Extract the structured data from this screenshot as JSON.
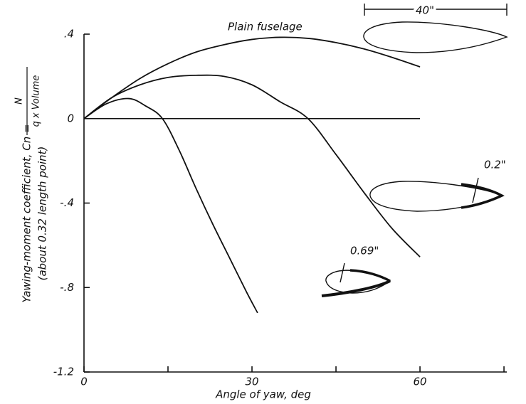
{
  "chart_data": {
    "type": "line",
    "xlabel": "Angle of yaw, deg",
    "ylabel": "Yawing-moment coefficient, Cn =",
    "ylabel_fraction": {
      "numerator": "N",
      "denominator": "q x Volume"
    },
    "ylabel_note": "(about 0.32 length point)",
    "annotation": "40\"",
    "xlim": [
      0,
      75.5
    ],
    "ylim": [
      -1.2,
      0.4
    ],
    "xticks": [
      0,
      30,
      60
    ],
    "xminorticks": [
      15,
      45,
      75
    ],
    "yticks": [
      {
        "value": 0.4,
        "label": ".4"
      },
      {
        "value": 0,
        "label": "0"
      },
      {
        "value": -0.4,
        "label": "-.4"
      },
      {
        "value": -0.8,
        "label": "-.8"
      },
      {
        "value": -1.2,
        "label": "-1.2"
      }
    ],
    "zero_line": true,
    "series": [
      {
        "name": "Plain fuselage",
        "color": "#111111",
        "x": [
          0,
          5,
          10,
          15,
          20,
          25,
          30,
          35,
          40,
          45,
          50,
          55,
          60
        ],
        "values": [
          0,
          0.1,
          0.19,
          0.26,
          0.315,
          0.35,
          0.375,
          0.385,
          0.38,
          0.36,
          0.33,
          0.29,
          0.245
        ]
      },
      {
        "name": "0.2\"",
        "color": "#111111",
        "x": [
          0,
          5,
          10,
          15,
          20,
          25,
          30,
          35,
          40,
          45,
          50,
          55,
          60
        ],
        "values": [
          0,
          0.1,
          0.16,
          0.195,
          0.205,
          0.2,
          0.16,
          0.08,
          0,
          -0.17,
          -0.35,
          -0.52,
          -0.655
        ]
      },
      {
        "name": "0.69\"",
        "color": "#111111",
        "x": [
          0,
          4,
          8,
          11,
          14,
          17,
          20,
          23,
          26,
          29,
          31
        ],
        "values": [
          0,
          0.07,
          0.095,
          0.06,
          0,
          -0.15,
          -0.33,
          -0.5,
          -0.66,
          -0.82,
          -0.92
        ]
      }
    ]
  }
}
